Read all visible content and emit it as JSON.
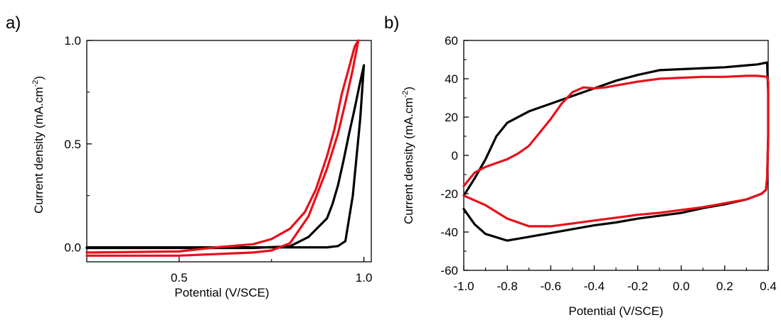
{
  "chart_data": [
    {
      "type": "line",
      "panel_label": "a)",
      "xlabel": "Potential (V/SCE)",
      "ylabel_main": "Current density (mA.cm",
      "ylabel_sup": "-2",
      "ylabel_close": ")",
      "xlim": [
        0.25,
        1.02
      ],
      "ylim": [
        -0.07,
        1.0
      ],
      "xticks": [
        0.5,
        1.0
      ],
      "xtick_labels": [
        "0.5",
        "1.0"
      ],
      "yticks": [
        0.0,
        0.5,
        1.0
      ],
      "ytick_labels": [
        "0.0",
        "0.5",
        "1.0"
      ],
      "grid": false,
      "colors": {
        "black": "#000000",
        "red": "#e8101a"
      },
      "series": [
        {
          "color": "#000000",
          "x": [
            0.25,
            0.5,
            0.7,
            0.8,
            0.85,
            0.9,
            0.93,
            0.95,
            0.97,
            0.99,
            1.0,
            0.995,
            0.99,
            0.975,
            0.96,
            0.945,
            0.93,
            0.915,
            0.9,
            0.85,
            0.8,
            0.7,
            0.5,
            0.25
          ],
          "y": [
            0.0,
            0.0,
            0.0,
            0.0,
            0.0,
            0.0,
            0.006,
            0.03,
            0.25,
            0.62,
            0.88,
            0.84,
            0.8,
            0.67,
            0.55,
            0.42,
            0.3,
            0.21,
            0.14,
            0.05,
            0.005,
            -0.003,
            -0.003,
            -0.003
          ]
        },
        {
          "color": "#e8101a",
          "x": [
            0.25,
            0.5,
            0.7,
            0.75,
            0.8,
            0.85,
            0.9,
            0.93,
            0.95,
            0.97,
            0.985,
            0.975,
            0.96,
            0.94,
            0.92,
            0.9,
            0.87,
            0.84,
            0.8,
            0.75,
            0.7,
            0.6,
            0.5,
            0.25
          ],
          "y": [
            -0.04,
            -0.04,
            -0.025,
            -0.015,
            0.02,
            0.15,
            0.38,
            0.55,
            0.7,
            0.86,
            1.0,
            0.97,
            0.87,
            0.74,
            0.57,
            0.44,
            0.28,
            0.17,
            0.09,
            0.04,
            0.015,
            0.0,
            -0.02,
            -0.025
          ]
        }
      ]
    },
    {
      "type": "line",
      "panel_label": "b)",
      "xlabel": "Potential (V/SCE)",
      "ylabel_main": "Current density (mA.cm",
      "ylabel_sup": "-2",
      "ylabel_close": ")",
      "xlim": [
        -1.0,
        0.4
      ],
      "ylim": [
        -60,
        60
      ],
      "xticks": [
        -1.0,
        -0.8,
        -0.6,
        -0.4,
        -0.2,
        0.0,
        0.2,
        0.4
      ],
      "xtick_labels": [
        "-1.0",
        "-0.8",
        "-0.6",
        "-0.4",
        "-0.2",
        "0.0",
        "0.2",
        "0.4"
      ],
      "yticks": [
        -60,
        -40,
        -20,
        0,
        20,
        40,
        60
      ],
      "ytick_labels": [
        "-60",
        "-40",
        "-20",
        "0",
        "20",
        "40",
        "60"
      ],
      "grid": false,
      "colors": {
        "black": "#000000",
        "red": "#e8101a"
      },
      "series": [
        {
          "color": "#000000",
          "x": [
            -1.0,
            -0.95,
            -0.9,
            -0.85,
            -0.8,
            -0.7,
            -0.6,
            -0.5,
            -0.4,
            -0.3,
            -0.2,
            -0.1,
            0.0,
            0.1,
            0.2,
            0.3,
            0.35,
            0.395,
            0.4,
            0.4,
            0.395,
            0.39,
            0.37,
            0.3,
            0.2,
            0.1,
            0.0,
            -0.1,
            -0.2,
            -0.3,
            -0.4,
            -0.5,
            -0.6,
            -0.7,
            -0.8,
            -0.9,
            -0.95,
            -1.0
          ],
          "y": [
            -21,
            -12,
            -2,
            10,
            17,
            23,
            27,
            31,
            35,
            39,
            42,
            44.5,
            45,
            45.5,
            46,
            47,
            47.5,
            48.5,
            33,
            10,
            -12,
            -18,
            -20,
            -23,
            -25.5,
            -27.5,
            -30,
            -31.5,
            -33,
            -35,
            -36.5,
            -38.5,
            -40.5,
            -42.5,
            -44.5,
            -41,
            -36,
            -28
          ]
        },
        {
          "color": "#e8101a",
          "x": [
            -1.0,
            -0.95,
            -0.9,
            -0.8,
            -0.75,
            -0.7,
            -0.65,
            -0.6,
            -0.55,
            -0.5,
            -0.45,
            -0.4,
            -0.35,
            -0.3,
            -0.2,
            -0.1,
            0.0,
            0.1,
            0.2,
            0.3,
            0.35,
            0.395,
            0.4,
            0.4,
            0.395,
            0.39,
            0.37,
            0.3,
            0.2,
            0.1,
            0.0,
            -0.1,
            -0.2,
            -0.3,
            -0.4,
            -0.5,
            -0.6,
            -0.7,
            -0.8,
            -0.9,
            -1.0
          ],
          "y": [
            -16,
            -9,
            -6,
            -2,
            1,
            5,
            12,
            19,
            27,
            33,
            35.5,
            35,
            35.5,
            36.5,
            38.5,
            40,
            40.5,
            41,
            41,
            41.5,
            41.5,
            41,
            38,
            10,
            -12,
            -18,
            -20,
            -23,
            -25,
            -27,
            -28.5,
            -30,
            -31,
            -32.5,
            -34,
            -35.5,
            -37,
            -37,
            -33,
            -26,
            -21
          ]
        }
      ]
    }
  ]
}
